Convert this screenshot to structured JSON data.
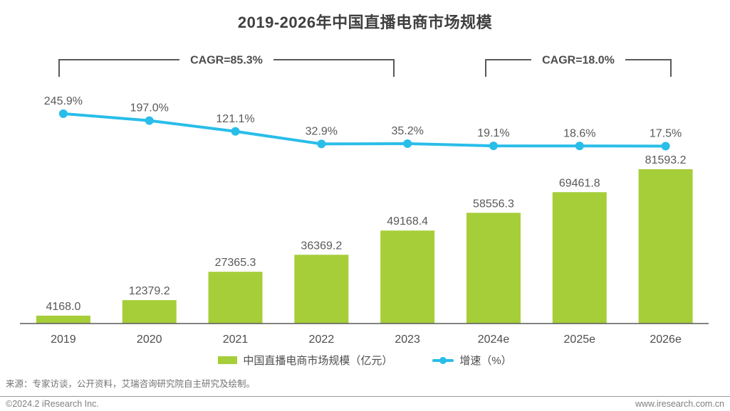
{
  "title": "2019-2026年中国直播电商市场规模",
  "chart_data": {
    "type": "bar",
    "title": "2019-2026年中国直播电商市场规模",
    "categories": [
      "2019",
      "2020",
      "2021",
      "2022",
      "2023",
      "2024e",
      "2025e",
      "2026e"
    ],
    "series": [
      {
        "name": "中国直播电商市场规模（亿元）",
        "type": "bar",
        "color": "#A6CE39",
        "unit": "亿元",
        "values": [
          4168.0,
          12379.2,
          27365.3,
          36369.2,
          49168.4,
          58556.3,
          69461.8,
          81593.2
        ]
      },
      {
        "name": "增速（%）",
        "type": "line",
        "color": "#29BDE9",
        "unit": "%",
        "values": [
          245.9,
          197.0,
          121.1,
          32.9,
          35.2,
          19.1,
          18.6,
          17.5
        ]
      }
    ],
    "annotations": [
      {
        "label": "CAGR=85.3%",
        "from": "2019",
        "to": "2023"
      },
      {
        "label": "CAGR=18.0%",
        "from": "2024e",
        "to": "2026e"
      }
    ],
    "grid": false,
    "legend_position": "bottom",
    "xlabel": "",
    "ylabel": ""
  },
  "legend": {
    "bar_label": "中国直播电商市场规模（亿元）",
    "line_label": "增速（%）"
  },
  "colors": {
    "bar": "#A6CE39",
    "line": "#29BDE9",
    "value_label": "#595959",
    "axis": "#595959",
    "bracket": "#595959",
    "title": "#404040"
  },
  "source": "来源：专家访谈，公开资料，艾瑞咨询研究院自主研究及绘制。",
  "footer": {
    "left": "©2024.2 iResearch Inc.",
    "right": "www.iresearch.com.cn"
  }
}
